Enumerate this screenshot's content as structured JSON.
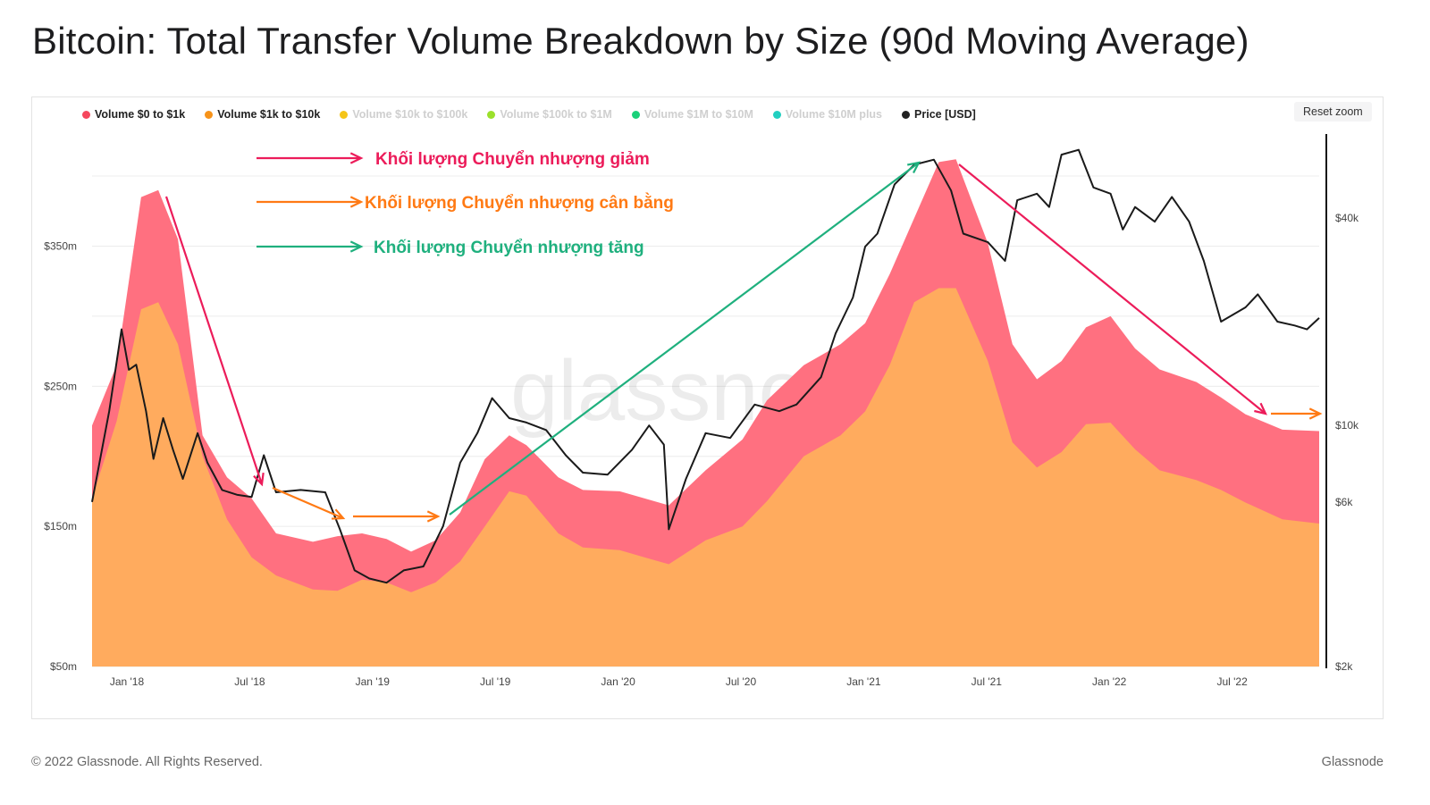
{
  "title": "Bitcoin: Total Transfer Volume Breakdown by Size (90d Moving Average)",
  "reset_zoom_label": "Reset zoom",
  "footer": {
    "copyright": "© 2022 Glassnode. All Rights Reserved.",
    "brand": "Glassnode"
  },
  "watermark": "glassnode",
  "colors": {
    "vol_small": "#ff7080",
    "vol_mid": "#ffab5e",
    "price": "#1a1a1a",
    "down": "#ec1c5a",
    "flat": "#ff7a14",
    "up": "#1fb07e",
    "axis": "#111111"
  },
  "legend": [
    {
      "label": "Volume $0 to $1k",
      "color": "#f5475d",
      "active": true
    },
    {
      "label": "Volume $1k to $10k",
      "color": "#f7931a",
      "active": true
    },
    {
      "label": "Volume $10k to $100k",
      "color": "#f5c518",
      "active": false
    },
    {
      "label": "Volume $100k to $1M",
      "color": "#9be02b",
      "active": false
    },
    {
      "label": "Volume $1M to $10M",
      "color": "#1bd17a",
      "active": false
    },
    {
      "label": "Volume $10M plus",
      "color": "#22cfc0",
      "active": false
    },
    {
      "label": "Price [USD]",
      "color": "#222222",
      "active": true
    }
  ],
  "annotations": {
    "down_label": "Khối lượng Chuyển nhượng giảm",
    "flat_label": "Khối lượng Chuyển nhượng cân bằng",
    "up_label": "Khối lượng Chuyển nhượng tăng"
  },
  "chart_data": {
    "type": "area",
    "x_ticks": [
      "Jan '18",
      "Jul '18",
      "Jan '19",
      "Jul '19",
      "Jan '20",
      "Jul '20",
      "Jan '21",
      "Jul '21",
      "Jan '22",
      "Jul '22"
    ],
    "y_left_ticks": [
      "$50m",
      "$150m",
      "$250m",
      "$350m"
    ],
    "y_left_values": [
      50,
      150,
      250,
      350
    ],
    "y_right_ticks": [
      "$2k",
      "$6k",
      "$10k",
      "$40k"
    ],
    "y_right_values": [
      2000,
      6000,
      10000,
      40000
    ],
    "y_right_scale": "log",
    "ylim_left": [
      50,
      430
    ],
    "ylim_right": [
      2000,
      70000
    ],
    "x_range": [
      2017.85,
      2022.85
    ],
    "series": [
      {
        "name": "Volume $1k to $10k",
        "unit": "USD millions",
        "points": [
          [
            2017.85,
            170
          ],
          [
            2017.95,
            225
          ],
          [
            2018.05,
            305
          ],
          [
            2018.12,
            310
          ],
          [
            2018.2,
            280
          ],
          [
            2018.3,
            200
          ],
          [
            2018.4,
            155
          ],
          [
            2018.5,
            128
          ],
          [
            2018.6,
            115
          ],
          [
            2018.75,
            105
          ],
          [
            2018.85,
            104
          ],
          [
            2018.95,
            112
          ],
          [
            2019.05,
            110
          ],
          [
            2019.15,
            103
          ],
          [
            2019.25,
            110
          ],
          [
            2019.35,
            125
          ],
          [
            2019.45,
            150
          ],
          [
            2019.55,
            175
          ],
          [
            2019.62,
            172
          ],
          [
            2019.75,
            145
          ],
          [
            2019.85,
            135
          ],
          [
            2020.0,
            133
          ],
          [
            2020.1,
            128
          ],
          [
            2020.2,
            123
          ],
          [
            2020.35,
            140
          ],
          [
            2020.5,
            150
          ],
          [
            2020.6,
            168
          ],
          [
            2020.75,
            200
          ],
          [
            2020.9,
            215
          ],
          [
            2021.0,
            232
          ],
          [
            2021.1,
            265
          ],
          [
            2021.2,
            310
          ],
          [
            2021.3,
            320
          ],
          [
            2021.37,
            320
          ],
          [
            2021.5,
            268
          ],
          [
            2021.6,
            210
          ],
          [
            2021.7,
            192
          ],
          [
            2021.8,
            203
          ],
          [
            2021.9,
            223
          ],
          [
            2022.0,
            224
          ],
          [
            2022.1,
            205
          ],
          [
            2022.2,
            190
          ],
          [
            2022.35,
            183
          ],
          [
            2022.45,
            176
          ],
          [
            2022.55,
            167
          ],
          [
            2022.7,
            155
          ],
          [
            2022.85,
            152
          ]
        ]
      },
      {
        "name": "Volume $0 to $1k",
        "unit": "USD millions",
        "points": [
          [
            2017.85,
            222
          ],
          [
            2017.95,
            265
          ],
          [
            2018.05,
            385
          ],
          [
            2018.12,
            390
          ],
          [
            2018.2,
            355
          ],
          [
            2018.3,
            215
          ],
          [
            2018.4,
            185
          ],
          [
            2018.5,
            170
          ],
          [
            2018.6,
            145
          ],
          [
            2018.75,
            139
          ],
          [
            2018.85,
            143
          ],
          [
            2018.95,
            145
          ],
          [
            2019.05,
            141
          ],
          [
            2019.15,
            132
          ],
          [
            2019.25,
            140
          ],
          [
            2019.35,
            160
          ],
          [
            2019.45,
            198
          ],
          [
            2019.55,
            215
          ],
          [
            2019.62,
            208
          ],
          [
            2019.75,
            185
          ],
          [
            2019.85,
            176
          ],
          [
            2020.0,
            175
          ],
          [
            2020.1,
            170
          ],
          [
            2020.2,
            165
          ],
          [
            2020.35,
            190
          ],
          [
            2020.5,
            212
          ],
          [
            2020.6,
            240
          ],
          [
            2020.75,
            265
          ],
          [
            2020.9,
            280
          ],
          [
            2021.0,
            295
          ],
          [
            2021.1,
            330
          ],
          [
            2021.2,
            370
          ],
          [
            2021.3,
            410
          ],
          [
            2021.37,
            412
          ],
          [
            2021.5,
            352
          ],
          [
            2021.6,
            280
          ],
          [
            2021.7,
            255
          ],
          [
            2021.8,
            268
          ],
          [
            2021.9,
            292
          ],
          [
            2022.0,
            300
          ],
          [
            2022.1,
            277
          ],
          [
            2022.2,
            262
          ],
          [
            2022.35,
            253
          ],
          [
            2022.45,
            242
          ],
          [
            2022.55,
            230
          ],
          [
            2022.7,
            219
          ],
          [
            2022.85,
            218
          ]
        ]
      },
      {
        "name": "Price [USD]",
        "unit": "USD",
        "points": [
          [
            2017.85,
            6000
          ],
          [
            2017.92,
            11000
          ],
          [
            2017.97,
            19000
          ],
          [
            2018.0,
            14500
          ],
          [
            2018.03,
            15000
          ],
          [
            2018.07,
            11000
          ],
          [
            2018.1,
            8000
          ],
          [
            2018.14,
            10500
          ],
          [
            2018.18,
            8500
          ],
          [
            2018.22,
            7000
          ],
          [
            2018.28,
            9500
          ],
          [
            2018.32,
            7800
          ],
          [
            2018.38,
            6500
          ],
          [
            2018.44,
            6300
          ],
          [
            2018.5,
            6200
          ],
          [
            2018.55,
            8200
          ],
          [
            2018.6,
            6400
          ],
          [
            2018.7,
            6500
          ],
          [
            2018.8,
            6400
          ],
          [
            2018.86,
            5000
          ],
          [
            2018.92,
            3800
          ],
          [
            2018.98,
            3600
          ],
          [
            2019.05,
            3500
          ],
          [
            2019.12,
            3800
          ],
          [
            2019.2,
            3900
          ],
          [
            2019.28,
            5100
          ],
          [
            2019.35,
            7800
          ],
          [
            2019.42,
            9500
          ],
          [
            2019.48,
            12000
          ],
          [
            2019.55,
            10500
          ],
          [
            2019.62,
            10200
          ],
          [
            2019.7,
            9700
          ],
          [
            2019.78,
            8200
          ],
          [
            2019.85,
            7300
          ],
          [
            2019.95,
            7200
          ],
          [
            2020.05,
            8500
          ],
          [
            2020.12,
            10000
          ],
          [
            2020.18,
            8800
          ],
          [
            2020.2,
            5000
          ],
          [
            2020.27,
            7000
          ],
          [
            2020.35,
            9500
          ],
          [
            2020.45,
            9200
          ],
          [
            2020.55,
            11500
          ],
          [
            2020.65,
            11000
          ],
          [
            2020.72,
            11500
          ],
          [
            2020.82,
            13800
          ],
          [
            2020.88,
            18500
          ],
          [
            2020.95,
            23500
          ],
          [
            2021.0,
            33000
          ],
          [
            2021.05,
            36000
          ],
          [
            2021.12,
            50000
          ],
          [
            2021.2,
            57000
          ],
          [
            2021.28,
            59000
          ],
          [
            2021.35,
            48000
          ],
          [
            2021.4,
            36000
          ],
          [
            2021.5,
            34000
          ],
          [
            2021.57,
            30000
          ],
          [
            2021.62,
            45000
          ],
          [
            2021.7,
            47000
          ],
          [
            2021.75,
            43000
          ],
          [
            2021.8,
            61000
          ],
          [
            2021.87,
            63000
          ],
          [
            2021.93,
            49000
          ],
          [
            2022.0,
            47000
          ],
          [
            2022.05,
            37000
          ],
          [
            2022.1,
            43000
          ],
          [
            2022.18,
            39000
          ],
          [
            2022.25,
            46000
          ],
          [
            2022.32,
            39000
          ],
          [
            2022.38,
            30000
          ],
          [
            2022.45,
            20000
          ],
          [
            2022.55,
            22000
          ],
          [
            2022.6,
            24000
          ],
          [
            2022.68,
            20000
          ],
          [
            2022.75,
            19500
          ],
          [
            2022.8,
            19000
          ],
          [
            2022.85,
            20500
          ]
        ]
      }
    ]
  }
}
